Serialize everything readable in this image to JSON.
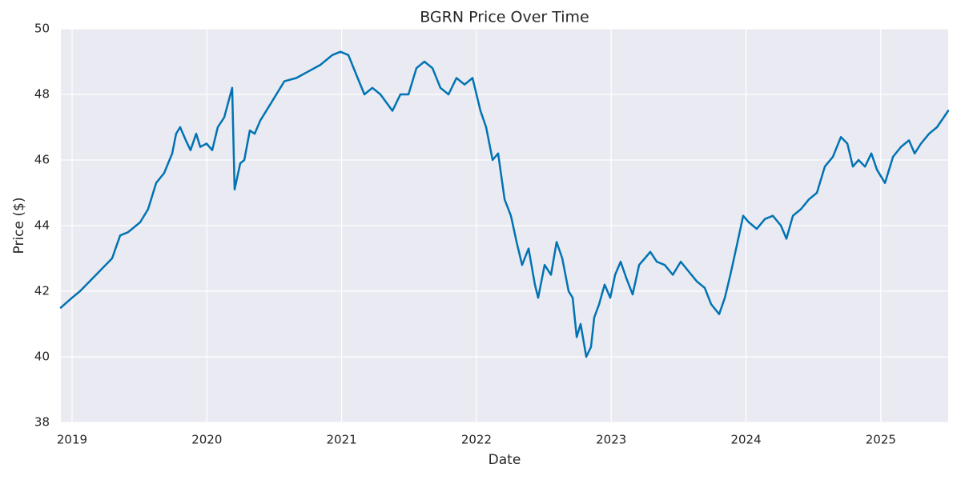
{
  "chart_data": {
    "type": "line",
    "title": "BGRN Price Over Time",
    "x_label": "Date",
    "y_label": "Price ($)",
    "xlim": [
      2018.917,
      2025.5
    ],
    "xticks": [
      2019,
      2020,
      2021,
      2022,
      2023,
      2024,
      2025
    ],
    "ylim": [
      38,
      50
    ],
    "yticks": [
      38,
      40,
      42,
      44,
      46,
      48,
      50
    ],
    "grid": true,
    "series": [
      {
        "name": "BGRN",
        "color": "#0173b2",
        "x": [
          2018.917,
          2019.0,
          2019.059,
          2019.178,
          2019.297,
          2019.357,
          2019.416,
          2019.505,
          2019.564,
          2019.624,
          2019.683,
          2019.743,
          2019.772,
          2019.802,
          2019.844,
          2019.879,
          2019.921,
          2019.951,
          2019.998,
          2020.04,
          2020.081,
          2020.129,
          2020.188,
          2020.206,
          2020.248,
          2020.278,
          2020.319,
          2020.355,
          2020.396,
          2020.486,
          2020.575,
          2020.664,
          2020.753,
          2020.842,
          2020.931,
          2020.991,
          2021.05,
          2021.109,
          2021.169,
          2021.228,
          2021.288,
          2021.377,
          2021.436,
          2021.496,
          2021.555,
          2021.614,
          2021.674,
          2021.733,
          2021.793,
          2021.852,
          2021.912,
          2021.971,
          2022.03,
          2022.072,
          2022.12,
          2022.161,
          2022.209,
          2022.256,
          2022.298,
          2022.339,
          2022.387,
          2022.434,
          2022.458,
          2022.506,
          2022.553,
          2022.595,
          2022.637,
          2022.684,
          2022.714,
          2022.744,
          2022.773,
          2022.815,
          2022.85,
          2022.874,
          2022.91,
          2022.951,
          2022.993,
          2023.029,
          2023.07,
          2023.112,
          2023.159,
          2023.207,
          2023.249,
          2023.29,
          2023.338,
          2023.397,
          2023.457,
          2023.516,
          2023.575,
          2023.635,
          2023.694,
          2023.742,
          2023.801,
          2023.843,
          2023.884,
          2023.932,
          2023.979,
          2024.021,
          2024.08,
          2024.14,
          2024.199,
          2024.259,
          2024.3,
          2024.348,
          2024.407,
          2024.467,
          2024.526,
          2024.585,
          2024.645,
          2024.704,
          2024.752,
          2024.793,
          2024.835,
          2024.883,
          2024.93,
          2024.972,
          2025.031,
          2025.091,
          2025.15,
          2025.209,
          2025.251,
          2025.298,
          2025.358,
          2025.417,
          2025.5
        ],
        "values": [
          41.5,
          41.8,
          42.0,
          42.5,
          43.0,
          43.7,
          43.8,
          44.1,
          44.5,
          45.3,
          45.6,
          46.2,
          46.8,
          47.0,
          46.6,
          46.3,
          46.8,
          46.4,
          46.5,
          46.3,
          47.0,
          47.3,
          48.2,
          45.1,
          45.9,
          46.0,
          46.9,
          46.8,
          47.2,
          47.8,
          48.4,
          48.5,
          48.7,
          48.9,
          49.2,
          49.3,
          49.2,
          48.6,
          48.0,
          48.2,
          48.0,
          47.5,
          48.0,
          48.0,
          48.8,
          49.0,
          48.8,
          48.2,
          48.0,
          48.5,
          48.3,
          48.5,
          47.5,
          47.0,
          46.0,
          46.2,
          44.8,
          44.3,
          43.5,
          42.8,
          43.3,
          42.2,
          41.8,
          42.8,
          42.5,
          43.5,
          43.0,
          42.0,
          41.8,
          40.6,
          41.0,
          40.0,
          40.3,
          41.2,
          41.6,
          42.2,
          41.8,
          42.5,
          42.9,
          42.4,
          41.9,
          42.8,
          43.0,
          43.2,
          42.9,
          42.8,
          42.5,
          42.9,
          42.6,
          42.3,
          42.1,
          41.6,
          41.3,
          41.8,
          42.5,
          43.4,
          44.3,
          44.1,
          43.9,
          44.2,
          44.3,
          44.0,
          43.6,
          44.3,
          44.5,
          44.8,
          45.0,
          45.8,
          46.1,
          46.7,
          46.5,
          45.8,
          46.0,
          45.8,
          46.2,
          45.7,
          45.3,
          46.1,
          46.4,
          46.6,
          46.2,
          46.5,
          46.8,
          47.0,
          47.5
        ]
      }
    ]
  }
}
